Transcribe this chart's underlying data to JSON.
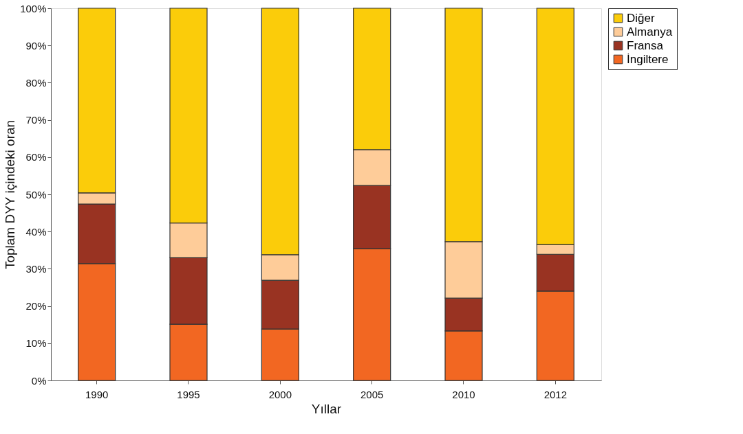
{
  "chart_data": {
    "type": "bar",
    "stacked": true,
    "xlabel": "Yıllar",
    "ylabel": "Toplam DYY içindeki oran",
    "categories": [
      "1990",
      "1995",
      "2000",
      "2005",
      "2010",
      "2012"
    ],
    "series": [
      {
        "name": "İngiltere",
        "color": "#f26722",
        "values": [
          31.4,
          15.1,
          13.8,
          35.4,
          13.3,
          24.0
        ]
      },
      {
        "name": "Fransa",
        "color": "#993322",
        "values": [
          16.0,
          17.9,
          13.1,
          17.0,
          8.8,
          9.9
        ]
      },
      {
        "name": "Almanya",
        "color": "#fecc99",
        "values": [
          3.0,
          9.3,
          6.9,
          9.6,
          15.2,
          2.6
        ]
      },
      {
        "name": "Diğer",
        "color": "#fbcc0a",
        "values": [
          49.6,
          57.7,
          66.2,
          38.0,
          62.7,
          63.5
        ]
      }
    ],
    "ylim": [
      0,
      100
    ],
    "yticks": [
      {
        "value": 0,
        "label": "0%"
      },
      {
        "value": 10,
        "label": "10%"
      },
      {
        "value": 20,
        "label": "20%"
      },
      {
        "value": 30,
        "label": "30%"
      },
      {
        "value": 40,
        "label": "40%"
      },
      {
        "value": 50,
        "label": "50%"
      },
      {
        "value": 60,
        "label": "60%"
      },
      {
        "value": 70,
        "label": "70%"
      },
      {
        "value": 80,
        "label": "80%"
      },
      {
        "value": 90,
        "label": "90%"
      },
      {
        "value": 100,
        "label": "100%"
      }
    ],
    "grid": false,
    "legend": "right"
  }
}
